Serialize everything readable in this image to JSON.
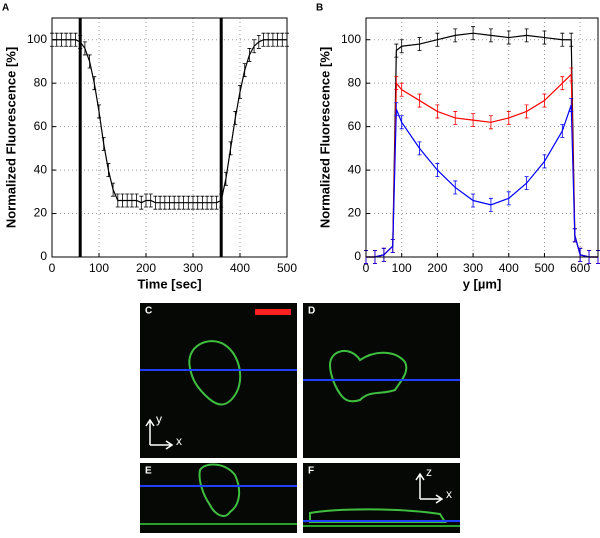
{
  "chart_data": [
    {
      "type": "line",
      "label": "A",
      "xlabel": "Time [sec]",
      "ylabel": "Normalized Fluorescence [%]",
      "xlim": [
        0,
        500
      ],
      "ylim": [
        0,
        110
      ],
      "xticks": [
        0,
        100,
        200,
        300,
        400,
        500
      ],
      "yticks": [
        0,
        20,
        40,
        60,
        80,
        100
      ],
      "grid": true,
      "vlines": [
        60,
        360
      ],
      "series": [
        {
          "color": "#000000",
          "error": 3,
          "x": [
            0,
            10,
            20,
            30,
            40,
            50,
            60,
            70,
            80,
            90,
            100,
            110,
            120,
            130,
            140,
            150,
            160,
            170,
            180,
            190,
            200,
            210,
            220,
            230,
            240,
            250,
            260,
            270,
            280,
            290,
            300,
            310,
            320,
            330,
            340,
            350,
            360,
            370,
            380,
            390,
            400,
            410,
            420,
            430,
            440,
            450,
            460,
            470,
            480,
            490,
            500
          ],
          "values": [
            100,
            100,
            100,
            100,
            100,
            100,
            99,
            96,
            90,
            80,
            67,
            52,
            40,
            31,
            26,
            26,
            26,
            26,
            26,
            25,
            26,
            26,
            25,
            25,
            25,
            25,
            25,
            25,
            25,
            25,
            25,
            25,
            25,
            25,
            25,
            25,
            26,
            36,
            50,
            64,
            76,
            86,
            93,
            97,
            99,
            100,
            100,
            100,
            100,
            100,
            100
          ]
        }
      ]
    },
    {
      "type": "line",
      "label": "B",
      "xlabel": "y [µm]",
      "ylabel": "Normalized Fluorescence [%]",
      "xlim": [
        0,
        650
      ],
      "ylim": [
        0,
        110
      ],
      "xticks": [
        0,
        100,
        200,
        300,
        400,
        500,
        600
      ],
      "yticks": [
        0,
        20,
        40,
        60,
        80,
        100
      ],
      "grid": true,
      "vlines": [],
      "series": [
        {
          "color": "#000000",
          "error": 3,
          "x": [
            0,
            25,
            50,
            75,
            85,
            100,
            150,
            200,
            250,
            300,
            350,
            400,
            450,
            500,
            550,
            575,
            585,
            600,
            625,
            650
          ],
          "values": [
            0,
            0,
            1,
            5,
            95,
            97,
            98,
            100,
            102,
            103,
            102,
            101,
            102,
            101,
            100,
            100,
            10,
            1,
            0,
            0
          ]
        },
        {
          "color": "#ff0000",
          "error": 3,
          "x": [
            0,
            25,
            50,
            75,
            85,
            100,
            150,
            200,
            250,
            300,
            350,
            400,
            450,
            500,
            550,
            575,
            585,
            600,
            625,
            650
          ],
          "values": [
            0,
            0,
            1,
            5,
            80,
            77,
            72,
            67,
            64,
            63,
            62,
            64,
            67,
            72,
            80,
            84,
            10,
            1,
            0,
            0
          ]
        },
        {
          "color": "#0000ff",
          "error": 3,
          "x": [
            0,
            25,
            50,
            75,
            85,
            100,
            150,
            200,
            250,
            300,
            350,
            400,
            450,
            500,
            550,
            575,
            585,
            600,
            625,
            650
          ],
          "values": [
            0,
            0,
            1,
            5,
            68,
            62,
            50,
            40,
            32,
            26,
            24,
            27,
            34,
            44,
            58,
            70,
            10,
            1,
            0,
            0
          ]
        }
      ]
    }
  ],
  "images": [
    {
      "label": "C",
      "axis_labels": [
        "y",
        "x"
      ]
    },
    {
      "label": "D"
    },
    {
      "label": "E"
    },
    {
      "label": "F",
      "axis_labels": [
        "z",
        "x"
      ]
    }
  ]
}
